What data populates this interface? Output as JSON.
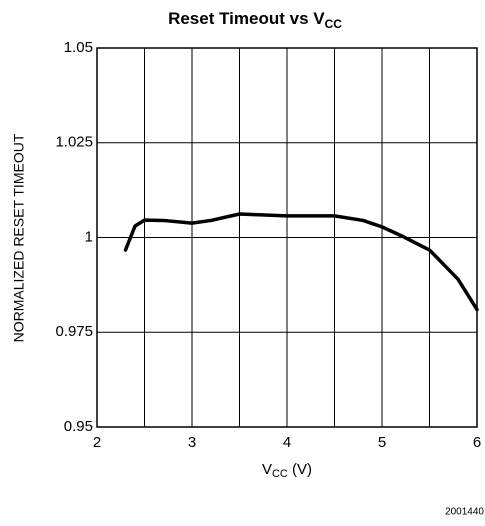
{
  "chart_data": {
    "type": "line",
    "title": {
      "text": "Reset Timeout vs V",
      "subscript": "CC"
    },
    "xlabel": {
      "text": "V",
      "subscript": "CC",
      "suffix": " (V)"
    },
    "ylabel": "NORMALIZED RESET TIMEOUT",
    "footnote": "2001440",
    "xlim": [
      2,
      6
    ],
    "xticks": [
      2,
      3,
      4,
      5,
      6
    ],
    "xminor": [
      2.5,
      3.5,
      4.5,
      5.5
    ],
    "ylim": [
      0.95,
      1.05
    ],
    "yticks": [
      0.95,
      0.975,
      1,
      1.025,
      1.05
    ],
    "grid": true,
    "series": [
      {
        "color": "#000000",
        "x": [
          2.3,
          2.4,
          2.5,
          2.7,
          3.0,
          3.2,
          3.5,
          3.7,
          4.0,
          4.5,
          4.8,
          5.0,
          5.2,
          5.5,
          5.8,
          6.0
        ],
        "values": [
          0.9967,
          1.003,
          1.0046,
          1.0045,
          1.0038,
          1.0045,
          1.0062,
          1.006,
          1.0057,
          1.0057,
          1.0045,
          1.0028,
          1.0005,
          0.9967,
          0.989,
          0.981
        ]
      }
    ]
  }
}
